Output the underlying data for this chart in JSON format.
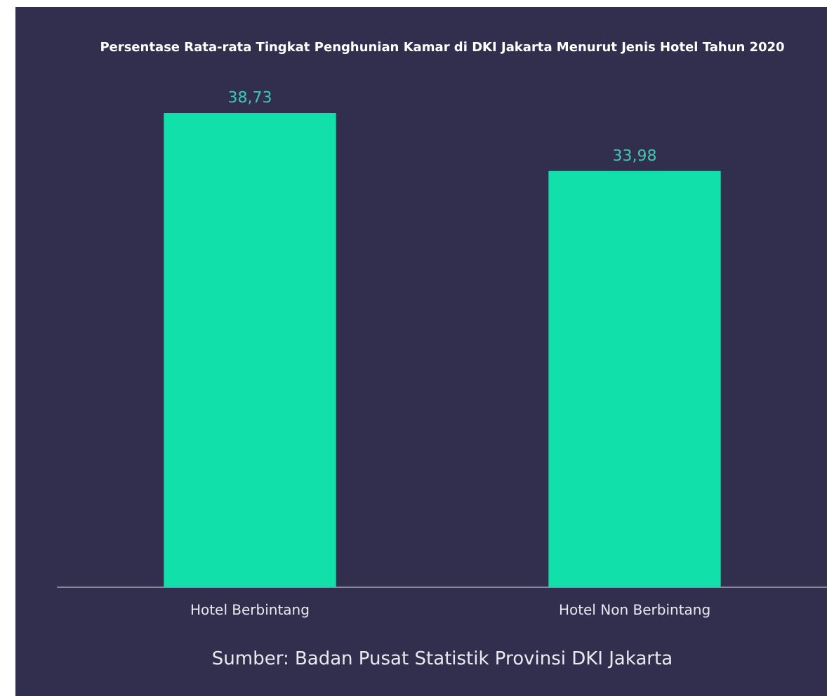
{
  "chart_data": {
    "type": "bar",
    "title": "Persentase Rata-rata Tingkat Penghunian Kamar di DKI Jakarta Menurut Jenis Hotel Tahun 2020",
    "categories": [
      "Hotel Berbintang",
      "Hotel Non Berbintang"
    ],
    "values": [
      38.73,
      33.98
    ],
    "value_labels": [
      "38,73",
      "33,98"
    ],
    "color": "#12e0ab",
    "tick_labels": "x",
    "grid": false,
    "legend": false,
    "annotations": [
      "Sumber: Badan Pusat Statistik Provinsi DKI Jakarta"
    ]
  }
}
